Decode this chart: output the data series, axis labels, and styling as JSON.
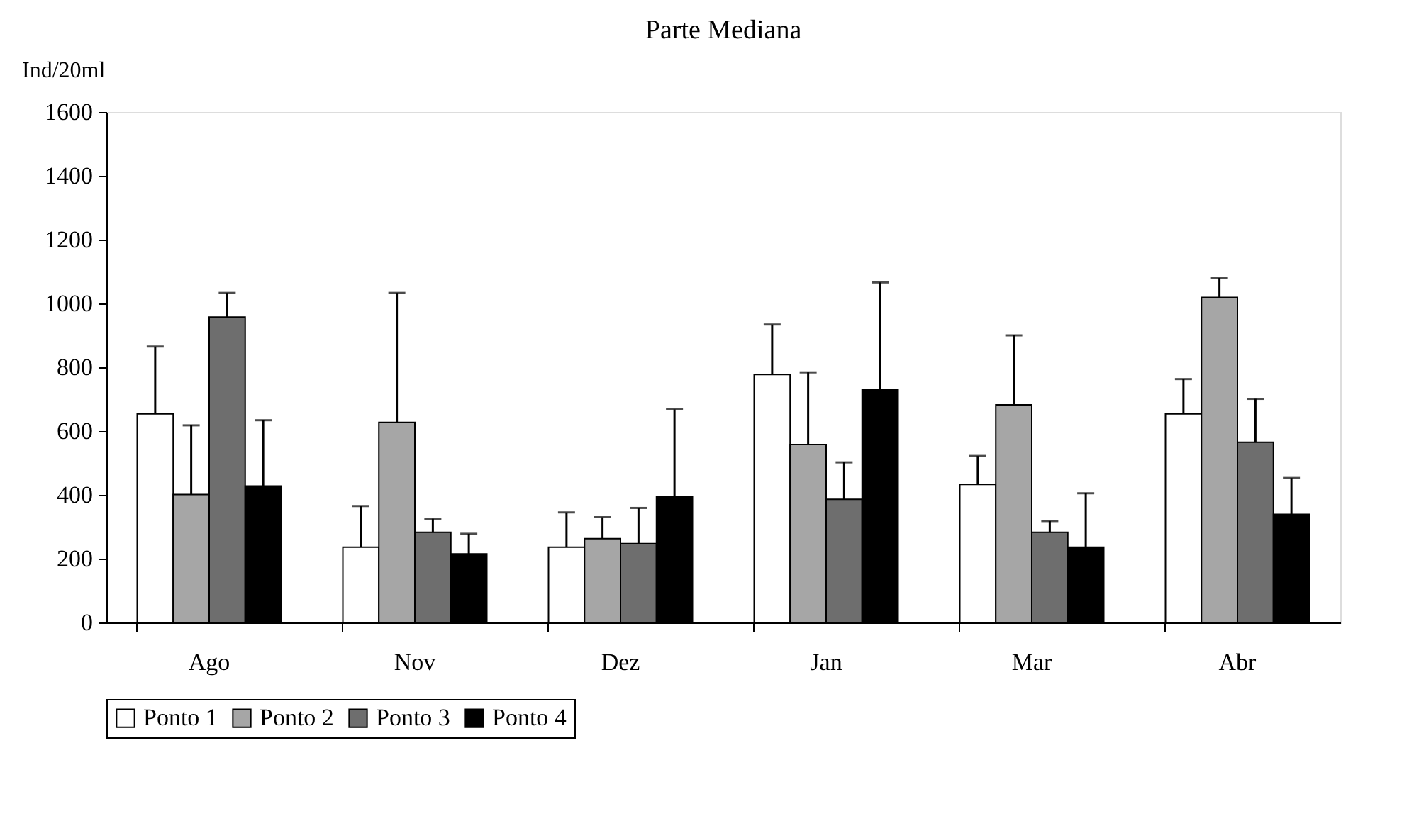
{
  "chart_data": {
    "type": "bar",
    "title": "Parte Mediana",
    "ylabel": "Ind/20ml",
    "categories": [
      "Ago",
      "Nov",
      "Dez",
      "Jan",
      "Mar",
      "Abr"
    ],
    "series": [
      {
        "name": "Ponto 1",
        "color": "#ffffff",
        "values": [
          654,
          236,
          236,
          777,
          433,
          654
        ],
        "errors": [
          [
            654,
            865
          ],
          [
            236,
            365
          ],
          [
            236,
            345
          ],
          [
            777,
            934
          ],
          [
            433,
            522
          ],
          [
            654,
            763
          ]
        ]
      },
      {
        "name": "Ponto 2",
        "color": "#a6a6a6",
        "values": [
          401,
          627,
          263,
          558,
          682,
          1019
        ],
        "errors": [
          [
            401,
            618
          ],
          [
            627,
            1033
          ],
          [
            263,
            330
          ],
          [
            558,
            784
          ],
          [
            682,
            900
          ],
          [
            1019,
            1080
          ]
        ]
      },
      {
        "name": "Ponto 3",
        "color": "#6e6e6e",
        "values": [
          957,
          283,
          247,
          386,
          283,
          565
        ],
        "errors": [
          [
            957,
            1033
          ],
          [
            283,
            325
          ],
          [
            247,
            359
          ],
          [
            386,
            502
          ],
          [
            283,
            318
          ],
          [
            565,
            701
          ]
        ]
      },
      {
        "name": "Ponto 4",
        "color": "#000000",
        "values": [
          428,
          215,
          395,
          730,
          236,
          339
        ],
        "errors": [
          [
            428,
            634
          ],
          [
            215,
            278
          ],
          [
            395,
            668
          ],
          [
            730,
            1066
          ],
          [
            236,
            405
          ],
          [
            339,
            453
          ]
        ]
      }
    ],
    "ylim": [
      0,
      1600
    ],
    "yticks": [
      0,
      200,
      400,
      600,
      800,
      1000,
      1200,
      1400,
      1600
    ],
    "legend": "bottom",
    "grid": false
  }
}
